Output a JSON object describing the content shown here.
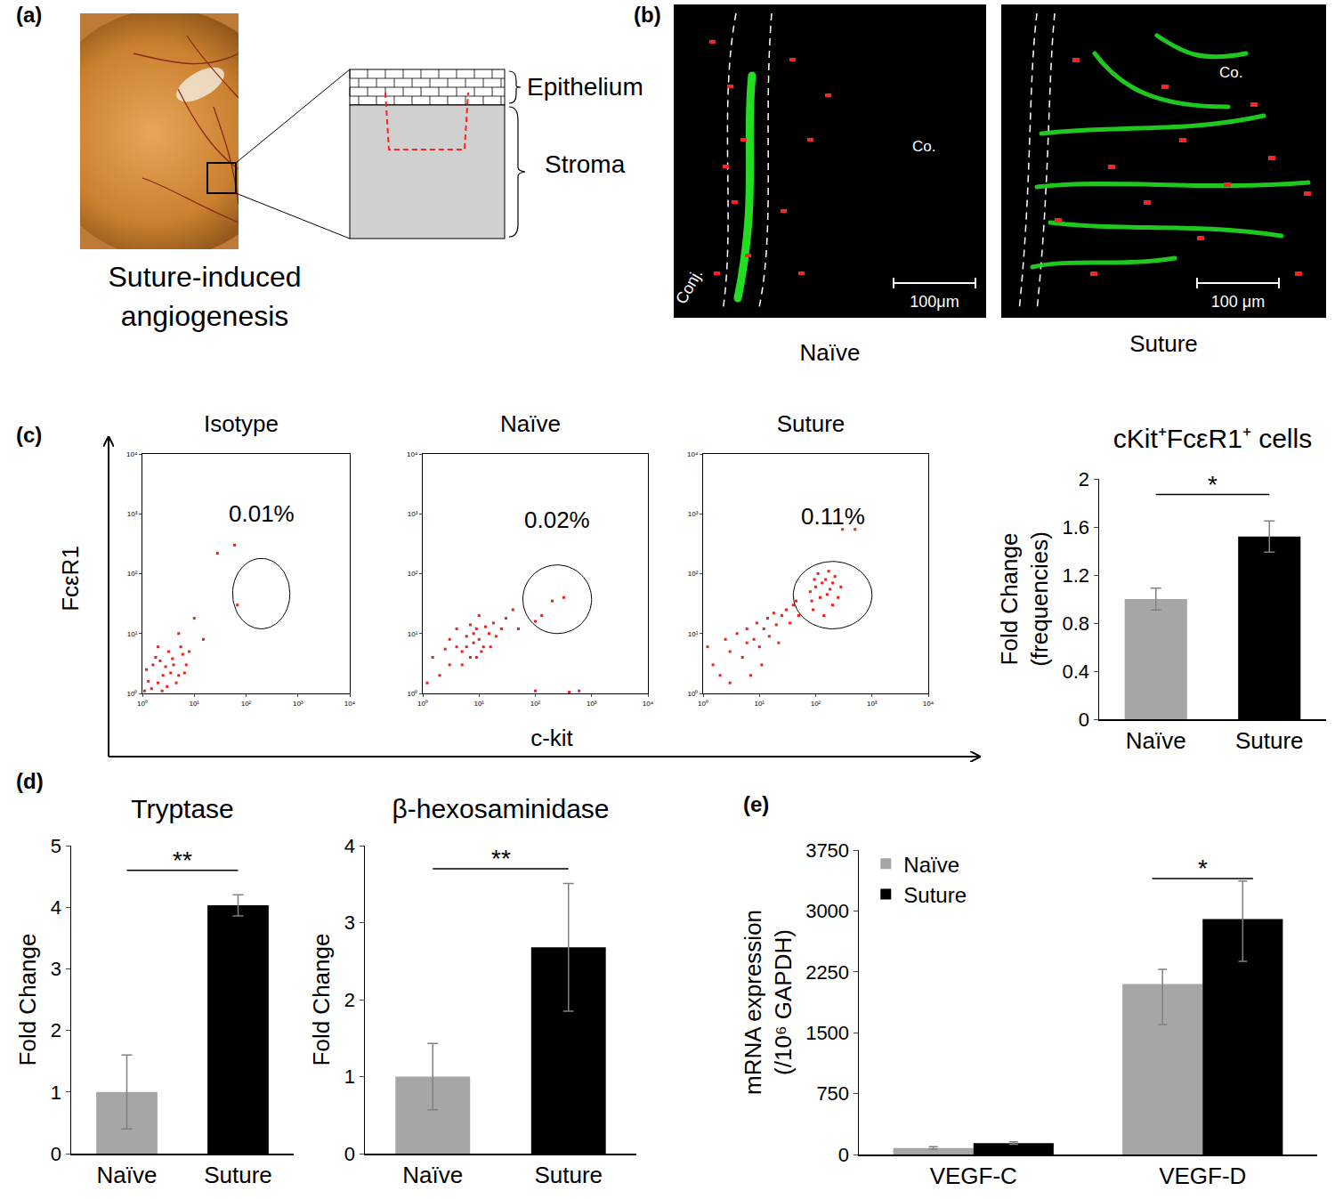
{
  "figure": {
    "panel_a": {
      "label": "(a)",
      "caption": [
        "Suture-induced",
        "angiogenesis"
      ],
      "layers": [
        "Epithelium",
        "Stroma"
      ]
    },
    "panel_b": {
      "label": "(b)",
      "images": [
        {
          "caption": "Naïve",
          "left_label": "Conj.",
          "right_label": "Co.",
          "scale_bar": "100μm"
        },
        {
          "caption": "Suture",
          "right_label": "Co.",
          "scale_bar": "100 μm"
        }
      ]
    },
    "panel_c": {
      "label": "(c)",
      "x_label": "c-kit",
      "y_label": "FcεR1"
    }
  },
  "chart_data": [
    {
      "type": "scatter",
      "title": "Isotype",
      "log": true,
      "color": "#e8211b",
      "marker": "square",
      "xlim": [
        1,
        10000
      ],
      "ylim": [
        1,
        10000
      ],
      "xticks": [
        {
          "value": 1,
          "label": "10⁰"
        },
        {
          "value": 10,
          "label": "10¹"
        },
        {
          "value": 100,
          "label": "10²"
        },
        {
          "value": 1000,
          "label": "10³"
        },
        {
          "value": 10000,
          "label": "10⁴"
        }
      ],
      "yticks": [
        {
          "value": 1,
          "label": "10⁰"
        },
        {
          "value": 10,
          "label": "10¹"
        },
        {
          "value": 100,
          "label": "10²"
        },
        {
          "value": 1000,
          "label": "10³"
        },
        {
          "value": 10000,
          "label": "10⁴"
        }
      ],
      "x": [
        1.5,
        2,
        2.5,
        3,
        1.2,
        4,
        3.5,
        2.2,
        5,
        1.8,
        6,
        2.8,
        1.3,
        4.5,
        3.2,
        7,
        2,
        1.1,
        5.5,
        8,
        1.6,
        3.8,
        2.4,
        6.5,
        28,
        60,
        68,
        10,
        5,
        15
      ],
      "y": [
        1.2,
        1.5,
        2,
        1.3,
        2.5,
        3,
        2.2,
        3.5,
        2,
        4,
        4.5,
        2.8,
        1.6,
        1.5,
        5,
        3,
        6,
        1.1,
        6,
        5,
        3,
        3.8,
        1.1,
        2.2,
        220,
        300,
        30,
        18,
        10,
        8
      ],
      "gate": {
        "x": [
          55,
          700
        ],
        "y": [
          12,
          180
        ]
      },
      "gate_label": "0.01%"
    },
    {
      "type": "scatter",
      "title": "Naïve",
      "log": true,
      "color": "#e8211b",
      "marker": "square",
      "xlim": [
        1,
        10000
      ],
      "ylim": [
        1,
        10000
      ],
      "xticks": [
        {
          "value": 1,
          "label": "10⁰"
        },
        {
          "value": 10,
          "label": "10¹"
        },
        {
          "value": 100,
          "label": "10²"
        },
        {
          "value": 1000,
          "label": "10³"
        },
        {
          "value": 10000,
          "label": "10⁴"
        }
      ],
      "yticks": [
        {
          "value": 1,
          "label": "10⁰"
        },
        {
          "value": 10,
          "label": "10¹"
        },
        {
          "value": 100,
          "label": "10²"
        },
        {
          "value": 1000,
          "label": "10³"
        },
        {
          "value": 10000,
          "label": "10⁴"
        }
      ],
      "x": [
        3,
        5,
        8,
        10,
        6,
        12,
        7,
        4,
        9,
        15,
        11,
        6,
        8,
        13,
        20,
        3,
        5,
        18,
        9,
        7,
        25,
        2,
        1.5,
        4,
        30,
        10,
        16,
        1.2,
        2.5,
        130,
        200,
        320,
        100,
        40,
        50,
        100,
        400,
        600
      ],
      "y": [
        3,
        5,
        7,
        8,
        9,
        6,
        4,
        6,
        12,
        10,
        5,
        6,
        10,
        13,
        9,
        8,
        3,
        15,
        4,
        14,
        12,
        2,
        4,
        12,
        18,
        20,
        6,
        1.5,
        5.5,
        20,
        35,
        40,
        16,
        25,
        12,
        1.1,
        1.05,
        1.1
      ],
      "gate": {
        "x": [
          60,
          1000
        ],
        "y": [
          10,
          140
        ]
      },
      "gate_label": "0.02%"
    },
    {
      "type": "scatter",
      "title": "Suture",
      "log": true,
      "color": "#e8211b",
      "marker": "square",
      "xlim": [
        1,
        10000
      ],
      "ylim": [
        1,
        10000
      ],
      "xticks": [
        {
          "value": 1,
          "label": "10⁰"
        },
        {
          "value": 10,
          "label": "10¹"
        },
        {
          "value": 100,
          "label": "10²"
        },
        {
          "value": 1000,
          "label": "10³"
        },
        {
          "value": 10000,
          "label": "10⁴"
        }
      ],
      "yticks": [
        {
          "value": 1,
          "label": "10⁰"
        },
        {
          "value": 10,
          "label": "10¹"
        },
        {
          "value": 100,
          "label": "10²"
        },
        {
          "value": 1000,
          "label": "10³"
        },
        {
          "value": 10000,
          "label": "10⁴"
        }
      ],
      "x": [
        2,
        3,
        5,
        8,
        10,
        4,
        6,
        12,
        15,
        20,
        25,
        9,
        1.5,
        3,
        7,
        30,
        18,
        35,
        40,
        6,
        11,
        14,
        1.2,
        2.5,
        22,
        50,
        45,
        80,
        100,
        120,
        150,
        180,
        200,
        90,
        110,
        130,
        170,
        220,
        250,
        85,
        160,
        140,
        200,
        95,
        280,
        300,
        500
      ],
      "y": [
        2,
        5,
        4,
        8,
        6,
        10,
        7,
        12,
        9,
        14,
        20,
        15,
        3,
        1.5,
        2,
        25,
        22,
        15,
        30,
        12,
        3,
        18,
        6,
        8,
        7,
        20,
        35,
        50,
        60,
        40,
        80,
        55,
        30,
        25,
        100,
        70,
        110,
        90,
        40,
        35,
        45,
        20,
        70,
        80,
        60,
        550,
        550
      ],
      "gate": {
        "x": [
          40,
          1000
        ],
        "y": [
          12,
          160
        ]
      },
      "gate_label": "0.11%"
    },
    {
      "type": "bar",
      "title": "cKit⁺FcεR1⁺ cells",
      "categories": [
        "Naïve",
        "Suture"
      ],
      "values": [
        1,
        1.52
      ],
      "errors": [
        0.09,
        0.13
      ],
      "colors": [
        "#a6a6a6",
        "#000000"
      ],
      "y_label": [
        "Fold Change",
        "(frequencies)"
      ],
      "ylim": [
        0,
        2
      ],
      "yticks": [
        0,
        0.4,
        0.8,
        1.2,
        1.6,
        2
      ],
      "significance": {
        "label": "*",
        "y": 1.87
      }
    },
    {
      "type": "bar",
      "panel": "(d)",
      "title": "Tryptase",
      "categories": [
        "Naïve",
        "Suture"
      ],
      "values": [
        1,
        4.03
      ],
      "errors": [
        0.6,
        0.17
      ],
      "colors": [
        "#a6a6a6",
        "#000000"
      ],
      "y_label": [
        "Fold Change"
      ],
      "ylim": [
        0,
        5
      ],
      "yticks": [
        0,
        1,
        2,
        3,
        4,
        5
      ],
      "significance": {
        "label": "**",
        "y": 4.6
      }
    },
    {
      "type": "bar",
      "title": "β-hexosaminidase",
      "categories": [
        "Naïve",
        "Suture"
      ],
      "values": [
        1,
        2.68
      ],
      "errors": [
        0.43,
        0.83
      ],
      "colors": [
        "#a6a6a6",
        "#000000"
      ],
      "y_label": [
        "Fold Change"
      ],
      "ylim": [
        0,
        4
      ],
      "yticks": [
        0,
        1,
        2,
        3,
        4
      ],
      "significance": {
        "label": "**",
        "y": 3.7
      }
    },
    {
      "type": "bar",
      "panel": "(e)",
      "categories": [
        "VEGF-C",
        "VEGF-D"
      ],
      "series": [
        {
          "name": "Naïve",
          "color": "#a6a6a6",
          "values": [
            80,
            2100
          ],
          "errors_plus": [
            15,
            180
          ],
          "errors_minus": [
            15,
            500
          ]
        },
        {
          "name": "Suture",
          "color": "#000000",
          "values": [
            140,
            2900
          ],
          "errors_plus": [
            15,
            470
          ],
          "errors_minus": [
            15,
            520
          ]
        }
      ],
      "y_label": [
        "mRNA expression",
        "(/10⁶ GAPDH)"
      ],
      "ylim": [
        0,
        3750
      ],
      "yticks": [
        0,
        750,
        1500,
        2250,
        3000,
        3750
      ],
      "legend": "top left",
      "significance": {
        "label": "*",
        "y": 3400,
        "category": "VEGF-D"
      }
    }
  ]
}
